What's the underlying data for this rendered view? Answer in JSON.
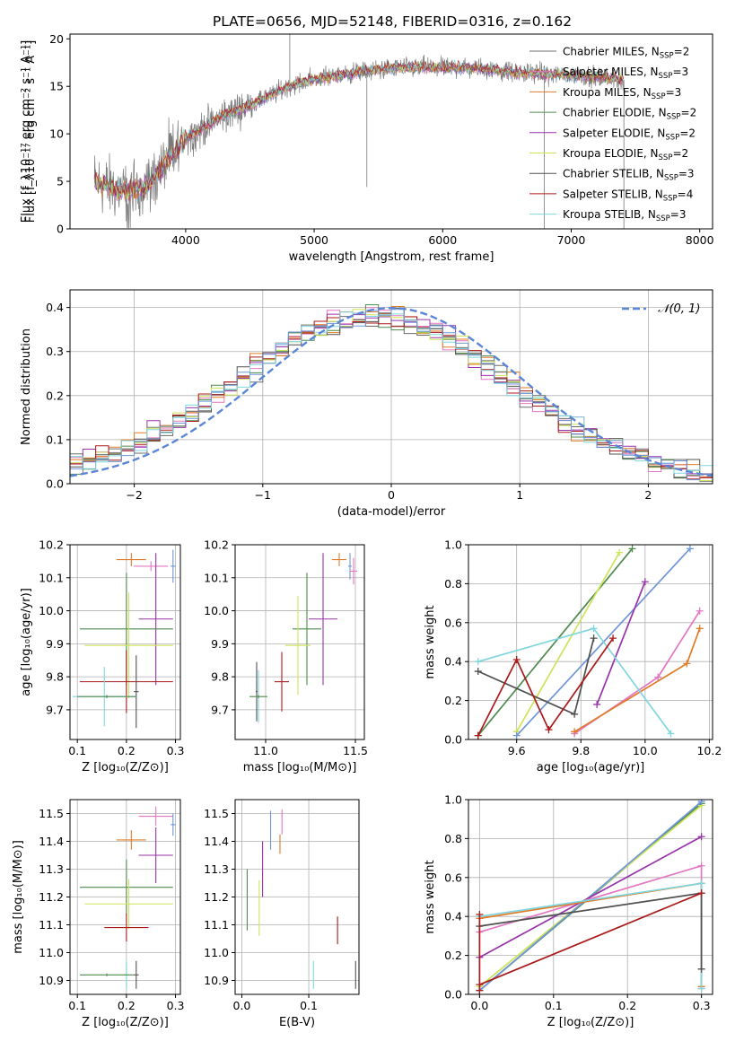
{
  "figure": {
    "title": "PLATE=0656, MJD=52148, FIBERID=0316, z=0.162"
  },
  "colors": {
    "Chabrier MILES": "#6b6b6b",
    "Salpeter MILES": "#e377c2",
    "Kroupa MILES": "#e07b28",
    "Chabrier ELODIE": "#4f8a4f",
    "Salpeter ELODIE": "#9933aa",
    "Kroupa ELODIE": "#cfe35a",
    "Chabrier STELIB": "#505050",
    "Salpeter STELIB": "#aa1a1a",
    "Kroupa STELIB": "#7ed6de",
    "Kroupa STELIB alt": "#6f96d8"
  },
  "chart_data": [
    {
      "id": "spectrum",
      "type": "line",
      "title": "PLATE=0656, MJD=52148, FIBERID=0316, z=0.162",
      "xlabel": "wavelength [Angstrom, rest frame]",
      "ylabel": "Flux [f_λ10⁻¹⁷ erg cm⁻² s⁻¹ A⁻¹]",
      "xlim": [
        3100,
        8100
      ],
      "ylim": [
        0,
        20.5
      ],
      "xticks": [
        4000,
        5000,
        6000,
        7000,
        8000
      ],
      "yticks": [
        0,
        5,
        10,
        15,
        20
      ],
      "legend_position": "top-right",
      "legend": [
        {
          "name": "Chabrier MILES",
          "nssp": "2"
        },
        {
          "name": "Salpeter MILES",
          "nssp": "3"
        },
        {
          "name": "Kroupa MILES",
          "nssp": "3"
        },
        {
          "name": "Chabrier ELODIE",
          "nssp": "2"
        },
        {
          "name": "Salpeter ELODIE",
          "nssp": "2"
        },
        {
          "name": "Kroupa ELODIE",
          "nssp": "2"
        },
        {
          "name": "Chabrier STELIB",
          "nssp": "3"
        },
        {
          "name": "Salpeter STELIB",
          "nssp": "4"
        },
        {
          "name": "Kroupa STELIB",
          "nssp": "3"
        }
      ],
      "continuum": {
        "x": [
          3290,
          3400,
          3550,
          3700,
          3800,
          3900,
          4000,
          4100,
          4300,
          4500,
          4800,
          5000,
          5200,
          5500,
          5700,
          6000,
          6300,
          6600,
          6900,
          7200,
          7400
        ],
        "y": [
          5.0,
          4.4,
          3.8,
          4.6,
          6.2,
          7.8,
          9.6,
          10.3,
          12.0,
          13.0,
          15.0,
          15.8,
          16.2,
          16.8,
          17.0,
          17.0,
          16.9,
          16.4,
          16.3,
          16.0,
          15.7
        ]
      }
    },
    {
      "id": "residuals",
      "type": "line",
      "xlabel": "(data-model)/error",
      "ylabel": "Normed distribution",
      "xlim": [
        -2.5,
        2.5
      ],
      "ylim": [
        0,
        0.44
      ],
      "xticks": [
        -2,
        -1,
        0,
        1,
        2
      ],
      "yticks": [
        0.0,
        0.1,
        0.2,
        0.3,
        0.4
      ],
      "grid": true,
      "legend_position": "top-right",
      "normal_label": "𝒩(0, 1)",
      "normal": {
        "mean": 0,
        "sigma": 1
      }
    },
    {
      "id": "age-Z",
      "type": "scatter",
      "xlabel": "Z [log₁₀(Z/Z⊙)]",
      "ylabel": "age  [log₁₀(age/yr)]",
      "xlim": [
        0.085,
        0.31
      ],
      "ylim": [
        9.61,
        10.2
      ],
      "xticks": [
        0.1,
        0.2,
        0.3
      ],
      "yticks": [
        9.7,
        9.8,
        9.9,
        10.0,
        10.1,
        10.2
      ],
      "grid": true,
      "points": [
        {
          "series": "Kroupa MILES",
          "x": 0.21,
          "y": 10.155,
          "xerr": 0.03,
          "yerr": 0.02
        },
        {
          "series": "Salpeter MILES",
          "x": 0.25,
          "y": 10.135,
          "xerr": 0.035,
          "yerr": 0.015
        },
        {
          "series": "Kroupa STELIB alt",
          "x": 0.295,
          "y": 10.135,
          "xerr": 0.005,
          "yerr": 0.05
        },
        {
          "series": "Salpeter ELODIE",
          "x": 0.26,
          "y": 9.975,
          "xerr": 0.035,
          "yerr": 0.2
        },
        {
          "series": "Chabrier ELODIE",
          "x": 0.2,
          "y": 9.945,
          "xerr": 0.095,
          "yerr": 0.17
        },
        {
          "series": "Kroupa ELODIE",
          "x": 0.205,
          "y": 9.895,
          "xerr": 0.09,
          "yerr": 0.16
        },
        {
          "series": "Salpeter STELIB",
          "x": 0.2,
          "y": 9.785,
          "xerr": 0.095,
          "yerr": 0.095
        },
        {
          "series": "Chabrier STELIB",
          "x": 0.22,
          "y": 9.755,
          "xerr": 0.005,
          "yerr": 0.11
        },
        {
          "series": "Kroupa STELIB",
          "x": 0.155,
          "y": 9.74,
          "xerr": 0.065,
          "yerr": 0.09
        },
        {
          "series": "Chabrier ELODIE",
          "x": 0.16,
          "y": 9.74,
          "xerr": 0.06,
          "yerr": 0.005
        }
      ]
    },
    {
      "id": "age-mass",
      "type": "scatter",
      "xlabel": "mass [log₁₀(M/M⊙)]",
      "xlim": [
        10.83,
        11.55
      ],
      "ylim": [
        9.61,
        10.2
      ],
      "xticks": [
        11.0,
        11.5
      ],
      "yticks": [
        9.7,
        9.8,
        9.9,
        10.0,
        10.1,
        10.2
      ],
      "grid": true,
      "points": [
        {
          "series": "Kroupa MILES",
          "x": 11.41,
          "y": 10.155,
          "xerr": 0.04,
          "yerr": 0.02
        },
        {
          "series": "Kroupa STELIB alt",
          "x": 11.47,
          "y": 10.135,
          "xerr": 0.01,
          "yerr": 0.04
        },
        {
          "series": "Salpeter MILES",
          "x": 11.49,
          "y": 10.12,
          "xerr": 0.02,
          "yerr": 0.04
        },
        {
          "series": "Salpeter ELODIE",
          "x": 11.32,
          "y": 9.975,
          "xerr": 0.08,
          "yerr": 0.2
        },
        {
          "series": "Chabrier ELODIE",
          "x": 11.23,
          "y": 9.945,
          "xerr": 0.08,
          "yerr": 0.17
        },
        {
          "series": "Kroupa ELODIE",
          "x": 11.18,
          "y": 9.895,
          "xerr": 0.07,
          "yerr": 0.15
        },
        {
          "series": "Salpeter STELIB",
          "x": 11.09,
          "y": 9.785,
          "xerr": 0.04,
          "yerr": 0.09
        },
        {
          "series": "Chabrier STELIB",
          "x": 10.95,
          "y": 9.755,
          "xerr": 0.005,
          "yerr": 0.09
        },
        {
          "series": "Kroupa STELIB",
          "x": 10.96,
          "y": 9.74,
          "xerr": 0.005,
          "yerr": 0.08
        },
        {
          "series": "Chabrier ELODIE",
          "x": 10.96,
          "y": 9.74,
          "xerr": 0.05,
          "yerr": 0.005
        }
      ]
    },
    {
      "id": "weight-age",
      "type": "line",
      "xlabel": "age  [log₁₀(age/yr)]",
      "ylabel": "mass weight",
      "xlim": [
        9.45,
        10.21
      ],
      "ylim": [
        0,
        1.0
      ],
      "xticks": [
        9.6,
        9.8,
        10.0,
        10.2
      ],
      "yticks": [
        0.0,
        0.2,
        0.4,
        0.6,
        0.8,
        1.0
      ],
      "grid": true,
      "series": [
        {
          "name": "Chabrier ELODIE",
          "x": [
            9.48,
            9.96
          ],
          "y": [
            0.02,
            0.98
          ]
        },
        {
          "name": "Kroupa ELODIE",
          "x": [
            9.6,
            9.92
          ],
          "y": [
            0.04,
            0.96
          ]
        },
        {
          "name": "Kroupa STELIB alt",
          "x": [
            9.6,
            10.14
          ],
          "y": [
            0.02,
            0.98
          ]
        },
        {
          "name": "Salpeter ELODIE",
          "x": [
            9.85,
            10.0
          ],
          "y": [
            0.18,
            0.81
          ]
        },
        {
          "name": "Salpeter MILES",
          "x": [
            9.78,
            10.04,
            10.17
          ],
          "y": [
            0.03,
            0.32,
            0.66
          ]
        },
        {
          "name": "Kroupa MILES",
          "x": [
            9.78,
            10.13,
            10.17
          ],
          "y": [
            0.04,
            0.39,
            0.57
          ]
        },
        {
          "name": "Kroupa STELIB",
          "x": [
            9.48,
            9.84,
            10.08
          ],
          "y": [
            0.4,
            0.57,
            0.03
          ]
        },
        {
          "name": "Chabrier STELIB",
          "x": [
            9.48,
            9.78,
            9.84
          ],
          "y": [
            0.35,
            0.13,
            0.52
          ]
        },
        {
          "name": "Salpeter STELIB",
          "x": [
            9.48,
            9.6,
            9.7,
            9.9
          ],
          "y": [
            0.02,
            0.41,
            0.05,
            0.52
          ]
        }
      ]
    },
    {
      "id": "mass-Z",
      "type": "scatter",
      "xlabel": "Z [log₁₀(Z/Z⊙)]",
      "ylabel": "mass [log₁₀(M/M⊙)]",
      "xlim": [
        0.085,
        0.31
      ],
      "ylim": [
        10.85,
        11.55
      ],
      "xticks": [
        0.1,
        0.2,
        0.3
      ],
      "yticks": [
        10.9,
        11.0,
        11.1,
        11.2,
        11.3,
        11.4,
        11.5
      ],
      "grid": true,
      "points": [
        {
          "series": "Salpeter MILES",
          "x": 0.26,
          "y": 11.49,
          "xerr": 0.035,
          "yerr": 0.035
        },
        {
          "series": "Kroupa STELIB alt",
          "x": 0.295,
          "y": 11.46,
          "xerr": 0.005,
          "yerr": 0.04
        },
        {
          "series": "Kroupa MILES",
          "x": 0.21,
          "y": 11.405,
          "xerr": 0.03,
          "yerr": 0.035
        },
        {
          "series": "Salpeter ELODIE",
          "x": 0.26,
          "y": 11.35,
          "xerr": 0.035,
          "yerr": 0.1
        },
        {
          "series": "Chabrier ELODIE",
          "x": 0.2,
          "y": 11.235,
          "xerr": 0.095,
          "yerr": 0.1
        },
        {
          "series": "Kroupa ELODIE",
          "x": 0.205,
          "y": 11.175,
          "xerr": 0.09,
          "yerr": 0.09
        },
        {
          "series": "Salpeter STELIB",
          "x": 0.2,
          "y": 11.09,
          "xerr": 0.045,
          "yerr": 0.05
        },
        {
          "series": "Chabrier STELIB",
          "x": 0.22,
          "y": 10.92,
          "xerr": 0.005,
          "yerr": 0.05
        },
        {
          "series": "Kroupa STELIB",
          "x": 0.2,
          "y": 10.92,
          "xerr": 0.005,
          "yerr": 0.05
        },
        {
          "series": "Chabrier ELODIE",
          "x": 0.16,
          "y": 10.92,
          "xerr": 0.055,
          "yerr": 0.005
        }
      ]
    },
    {
      "id": "mass-ebv",
      "type": "scatter",
      "xlabel": "E(B-V)",
      "xlim": [
        -0.01,
        0.175
      ],
      "ylim": [
        10.85,
        11.55
      ],
      "xticks": [
        0.0,
        0.1
      ],
      "yticks": [
        10.9,
        11.0,
        11.1,
        11.2,
        11.3,
        11.4,
        11.5
      ],
      "grid": true,
      "points": [
        {
          "series": "Kroupa STELIB alt",
          "x": 0.043,
          "y": 11.44,
          "yerr": 0.07
        },
        {
          "series": "Salpeter MILES",
          "x": 0.06,
          "y": 11.47,
          "yerr": 0.045
        },
        {
          "series": "Kroupa MILES",
          "x": 0.057,
          "y": 11.39,
          "yerr": 0.035
        },
        {
          "series": "Salpeter ELODIE",
          "x": 0.031,
          "y": 11.3,
          "yerr": 0.1
        },
        {
          "series": "Chabrier ELODIE",
          "x": 0.008,
          "y": 11.19,
          "yerr": 0.11
        },
        {
          "series": "Kroupa ELODIE",
          "x": 0.026,
          "y": 11.16,
          "yerr": 0.1
        },
        {
          "series": "Salpeter STELIB",
          "x": 0.143,
          "y": 11.08,
          "yerr": 0.05
        },
        {
          "series": "Chabrier STELIB",
          "x": 0.17,
          "y": 10.92,
          "yerr": 0.05
        },
        {
          "series": "Kroupa STELIB",
          "x": 0.107,
          "y": 10.92,
          "yerr": 0.05
        }
      ]
    },
    {
      "id": "weight-Z",
      "type": "line",
      "xlabel": "Z [log₁₀(Z/Z⊙)]",
      "ylabel": "mass weight",
      "xlim": [
        -0.015,
        0.315
      ],
      "ylim": [
        0,
        1.0
      ],
      "xticks": [
        0.0,
        0.1,
        0.2,
        0.3
      ],
      "yticks": [
        0.0,
        0.2,
        0.4,
        0.6,
        0.8,
        1.0
      ],
      "grid": true,
      "series": [
        {
          "name": "Chabrier ELODIE",
          "x": [
            0.0,
            0.3
          ],
          "y": [
            0.02,
            0.98
          ]
        },
        {
          "name": "Kroupa ELODIE",
          "x": [
            0.0,
            0.3
          ],
          "y": [
            0.04,
            0.97
          ]
        },
        {
          "name": "Kroupa STELIB alt",
          "x": [
            0.0,
            0.3
          ],
          "y": [
            0.02,
            0.99
          ]
        },
        {
          "name": "Salpeter ELODIE",
          "x": [
            0.0,
            0.3
          ],
          "y": [
            0.19,
            0.81
          ]
        },
        {
          "name": "Salpeter MILES",
          "x": [
            0.0,
            0.3,
            0.3
          ],
          "y": [
            0.32,
            0.66,
            0.03
          ]
        },
        {
          "name": "Kroupa MILES",
          "x": [
            0.0,
            0.3,
            0.3
          ],
          "y": [
            0.39,
            0.57,
            0.04
          ]
        },
        {
          "name": "Kroupa STELIB",
          "x": [
            0.0,
            0.3,
            0.3
          ],
          "y": [
            0.4,
            0.57,
            0.03
          ]
        },
        {
          "name": "Chabrier STELIB",
          "x": [
            0.0,
            0.3,
            0.3
          ],
          "y": [
            0.35,
            0.52,
            0.13
          ]
        },
        {
          "name": "Salpeter STELIB",
          "x": [
            0.0,
            0.0,
            0.0,
            0.3
          ],
          "y": [
            0.02,
            0.41,
            0.05,
            0.52
          ]
        }
      ]
    }
  ]
}
